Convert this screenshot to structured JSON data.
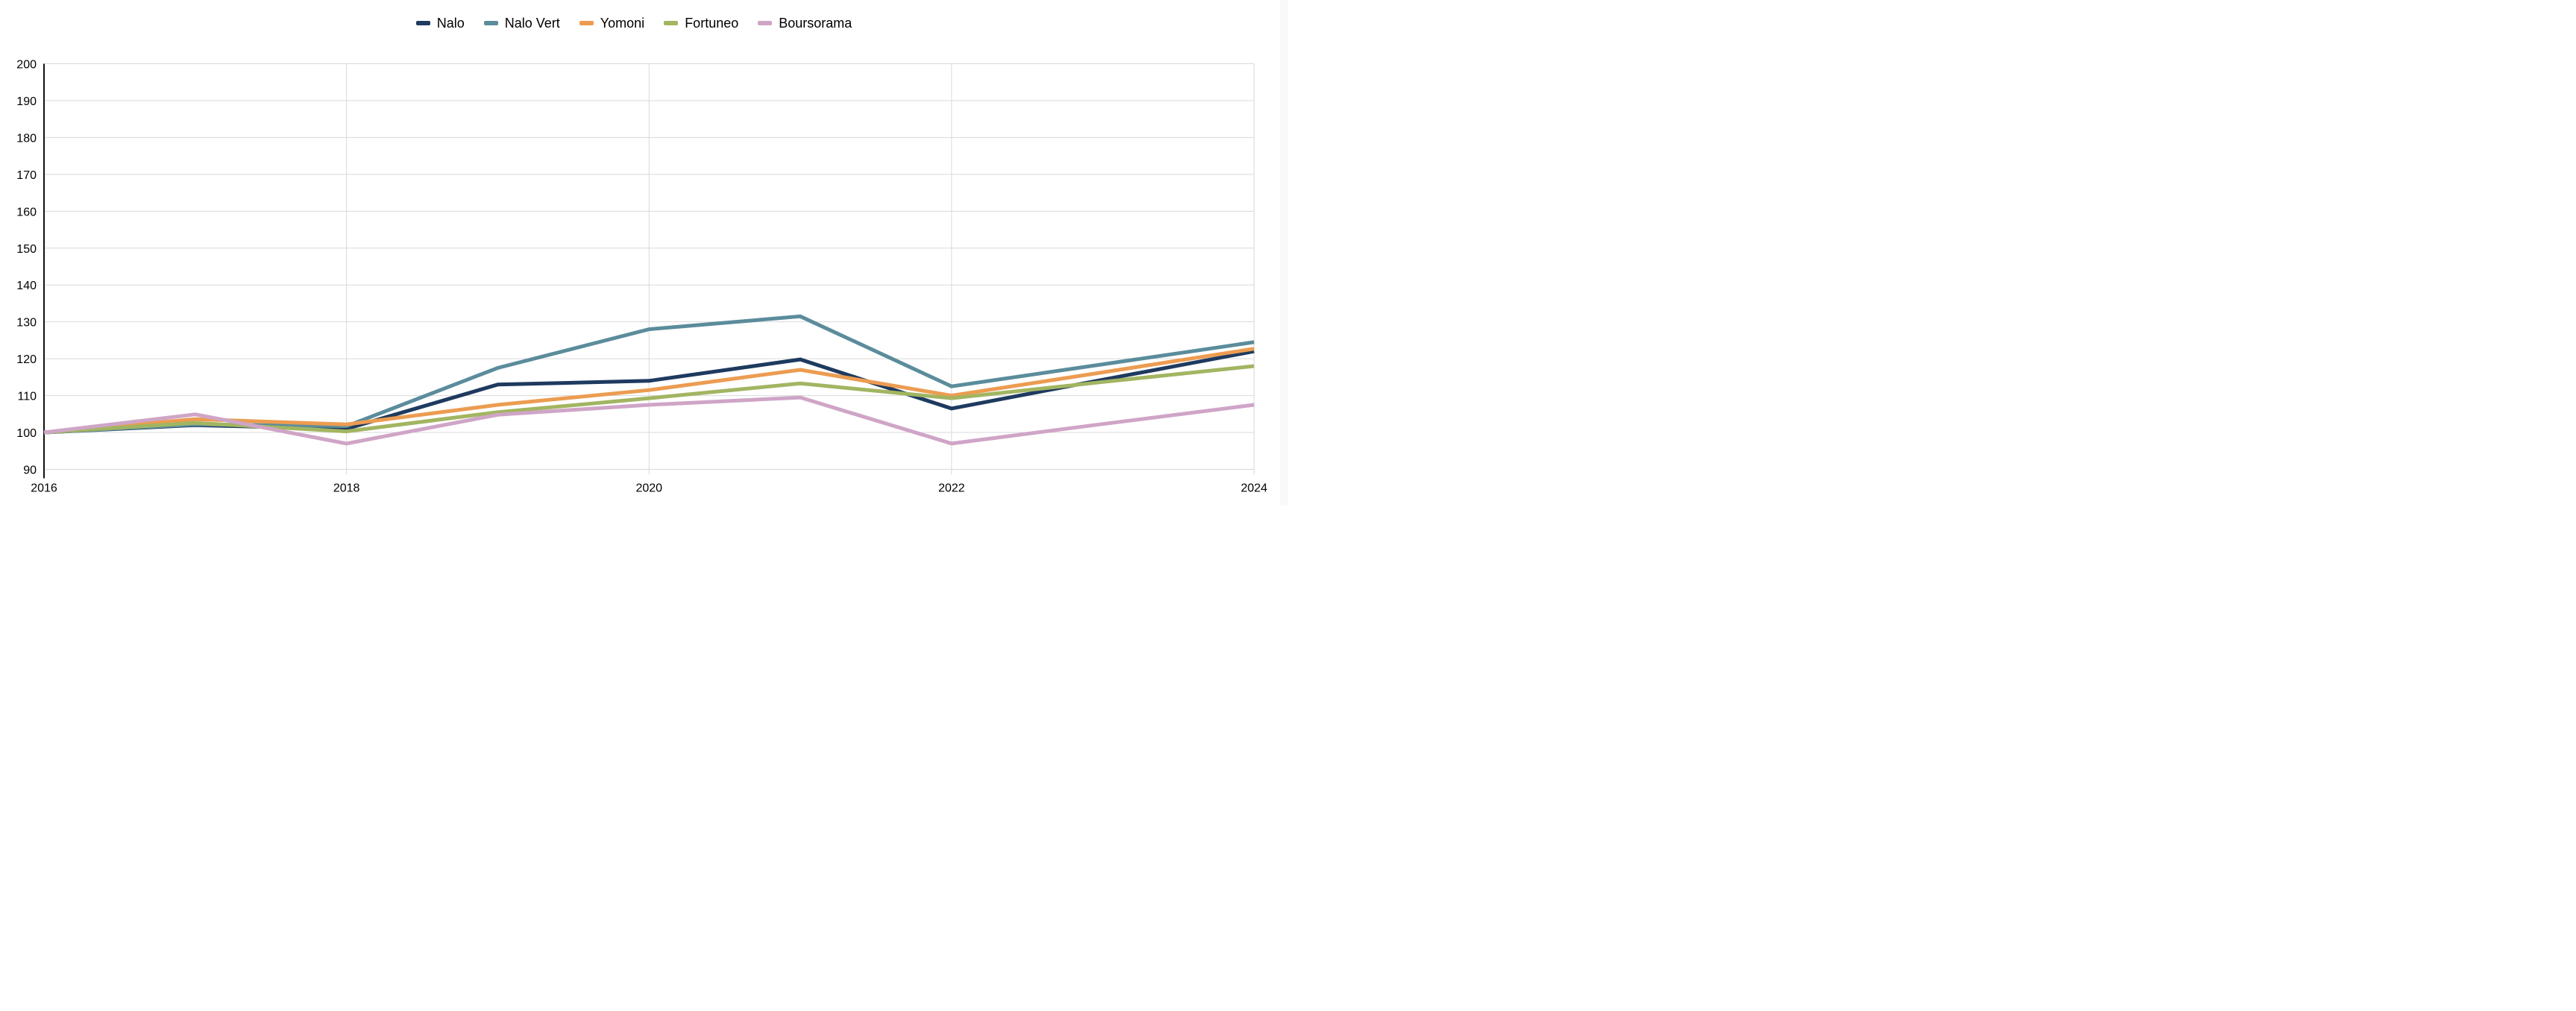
{
  "page": {
    "background_color": "#ffffff",
    "scrollbar_color": "#f8f9fa"
  },
  "chart_data": {
    "type": "line",
    "title": "",
    "xlabel": "",
    "ylabel": "",
    "xlim": [
      2016,
      2024
    ],
    "ylim": [
      90,
      200
    ],
    "grid": true,
    "gridline_color": "#d9d9d9",
    "axis_line_color": "#111111",
    "text_color": "#000000",
    "legend_position": "top-center",
    "x": [
      2016,
      2017,
      2018,
      2019,
      2020,
      2021,
      2022,
      2023,
      2024
    ],
    "x_ticks": [
      2016,
      2018,
      2020,
      2022,
      2024
    ],
    "x_tick_labels": [
      "2016",
      "2018",
      "2020",
      "2022",
      "2024"
    ],
    "y_ticks": [
      90,
      100,
      110,
      120,
      130,
      140,
      150,
      160,
      170,
      180,
      190,
      200
    ],
    "y_tick_labels": [
      "90",
      "100",
      "110",
      "120",
      "130",
      "140",
      "150",
      "160",
      "170",
      "180",
      "190",
      "200"
    ],
    "series": [
      {
        "name": "Nalo",
        "color": "#1e3a5f",
        "values": [
          100,
          102.0,
          101.0,
          113.0,
          114.0,
          119.8,
          106.5,
          114.3,
          122.0
        ]
      },
      {
        "name": "Nalo Vert",
        "color": "#5b8c9b",
        "values": [
          100,
          102.2,
          101.7,
          117.5,
          128.0,
          131.5,
          112.5,
          118.5,
          124.5
        ]
      },
      {
        "name": "Yomoni",
        "color": "#ec9c51",
        "values": [
          100,
          103.6,
          102.2,
          107.5,
          111.5,
          117.0,
          110.0,
          116.3,
          122.7
        ]
      },
      {
        "name": "Fortuneo",
        "color": "#a2b561",
        "values": [
          100,
          102.6,
          100.3,
          105.5,
          109.3,
          113.3,
          109.3,
          113.7,
          118.0
        ]
      },
      {
        "name": "Boursorama",
        "color": "#cfa5c7",
        "values": [
          100,
          104.9,
          97.0,
          104.8,
          107.5,
          109.5,
          97.0,
          102.3,
          107.5
        ]
      }
    ]
  }
}
